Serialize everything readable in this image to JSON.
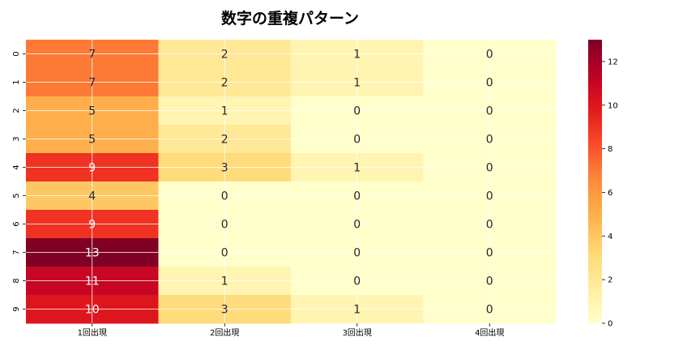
{
  "chart_data": {
    "type": "heatmap",
    "title": "数字の重複パターン",
    "xlabel": "",
    "ylabel": "",
    "columns": [
      "1回出現",
      "2回出現",
      "3回出現",
      "4回出現"
    ],
    "rows": [
      "0",
      "1",
      "2",
      "3",
      "4",
      "5",
      "6",
      "7",
      "8",
      "9"
    ],
    "values": [
      [
        7,
        2,
        1,
        0
      ],
      [
        7,
        2,
        1,
        0
      ],
      [
        5,
        1,
        0,
        0
      ],
      [
        5,
        2,
        0,
        0
      ],
      [
        9,
        3,
        1,
        0
      ],
      [
        4,
        0,
        0,
        0
      ],
      [
        9,
        0,
        0,
        0
      ],
      [
        13,
        0,
        0,
        0
      ],
      [
        11,
        1,
        0,
        0
      ],
      [
        10,
        3,
        1,
        0
      ]
    ],
    "colormap": "YlOrRd",
    "vmin": 0,
    "vmax": 13,
    "colorbar_ticks": [
      0,
      2,
      4,
      6,
      8,
      10,
      12
    ],
    "annotations": true,
    "grid": true
  }
}
